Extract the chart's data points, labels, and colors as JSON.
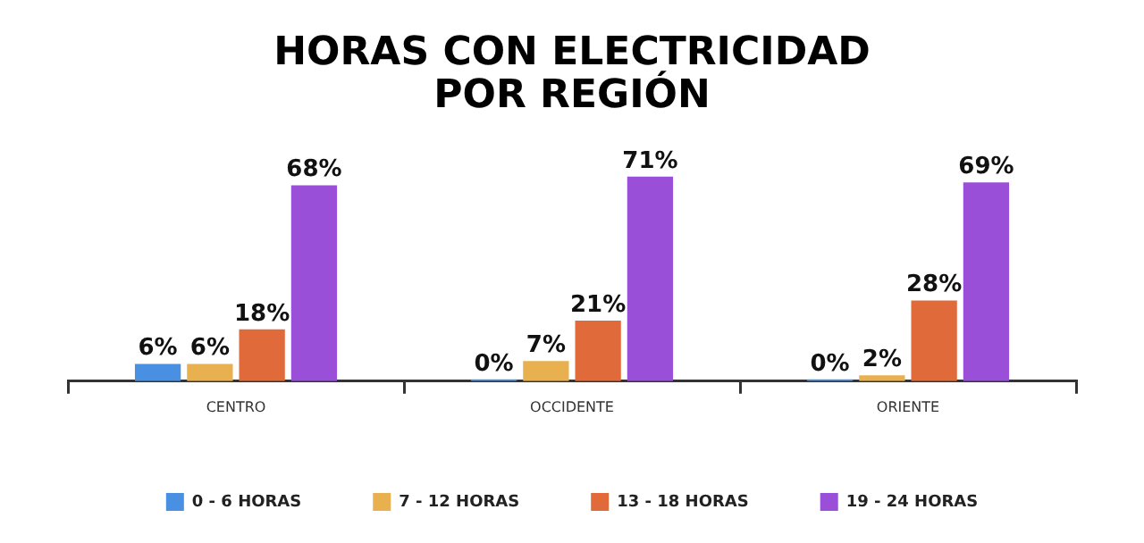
{
  "chart_data": {
    "type": "bar",
    "title": "HORAS CON ELECTRICIDAD\nPOR REGIÓN",
    "categories": [
      "CENTRO",
      "OCCIDENTE",
      "ORIENTE"
    ],
    "series": [
      {
        "name": "0 - 6 HORAS",
        "color": "#4a90e2",
        "values": [
          6,
          0,
          0
        ],
        "value_labels": [
          "6%",
          "0%",
          "0%"
        ]
      },
      {
        "name": "7 - 12 HORAS",
        "color": "#e9b050",
        "values": [
          6,
          7,
          2
        ],
        "value_labels": [
          "6%",
          "7%",
          "2%"
        ]
      },
      {
        "name": "13 - 18 HORAS",
        "color": "#e06a3a",
        "values": [
          18,
          21,
          28
        ],
        "value_labels": [
          "18%",
          "21%",
          "28%"
        ]
      },
      {
        "name": "19 - 24 HORAS",
        "color": "#9a4fd8",
        "values": [
          68,
          71,
          69
        ],
        "value_labels": [
          "68%",
          "71%",
          "69%"
        ]
      }
    ],
    "legend": "bottom",
    "tick_labels": "x",
    "grid": false
  }
}
